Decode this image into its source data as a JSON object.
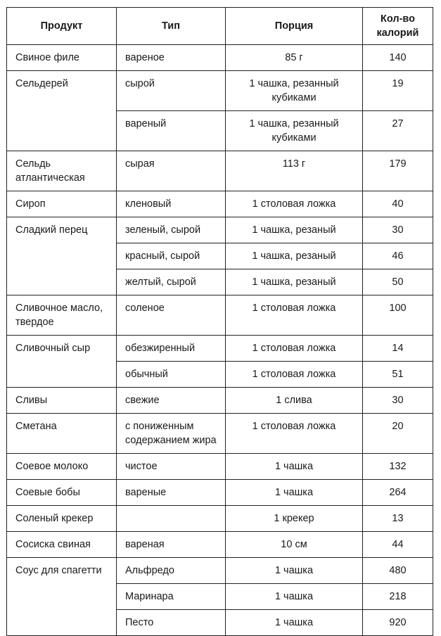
{
  "headers": {
    "product": "Продукт",
    "type": "Тип",
    "portion": "Порция",
    "calories": "Кол-во калорий"
  },
  "rows": [
    {
      "product": "Свиное филе",
      "variants": [
        {
          "type": "вареное",
          "portion": "85 г",
          "calories": "140"
        }
      ]
    },
    {
      "product": "Сельдерей",
      "variants": [
        {
          "type": "сырой",
          "portion": "1 чашка, резанный кубиками",
          "calories": "19"
        },
        {
          "type": "вареный",
          "portion": "1 чашка, резанный кубиками",
          "calories": "27"
        }
      ]
    },
    {
      "product": "Сельдь атлантическая",
      "variants": [
        {
          "type": "сырая",
          "portion": "113 г",
          "calories": "179"
        }
      ]
    },
    {
      "product": "Сироп",
      "variants": [
        {
          "type": "кленовый",
          "portion": "1 столовая ложка",
          "calories": "40"
        }
      ]
    },
    {
      "product": "Сладкий перец",
      "variants": [
        {
          "type": "зеленый, сырой",
          "portion": "1 чашка, резаный",
          "calories": "30"
        },
        {
          "type": "красный, сырой",
          "portion": "1 чашка, резаный",
          "calories": "46"
        },
        {
          "type": "желтый, сырой",
          "portion": "1 чашка, резаный",
          "calories": "50"
        }
      ]
    },
    {
      "product": "Сливочное масло, твердое",
      "variants": [
        {
          "type": "соленое",
          "portion": "1 столовая ложка",
          "calories": "100"
        }
      ]
    },
    {
      "product": "Сливочный сыр",
      "variants": [
        {
          "type": "обезжиренный",
          "portion": "1 столовая ложка",
          "calories": "14"
        },
        {
          "type": "обычный",
          "portion": "1 столовая ложка",
          "calories": "51"
        }
      ]
    },
    {
      "product": "Сливы",
      "variants": [
        {
          "type": "свежие",
          "portion": "1 слива",
          "calories": "30"
        }
      ]
    },
    {
      "product": "Сметана",
      "variants": [
        {
          "type": "с пониженным содержанием жира",
          "portion": "1 столовая ложка",
          "calories": "20"
        }
      ]
    },
    {
      "product": "Соевое молоко",
      "variants": [
        {
          "type": "чистое",
          "portion": "1 чашка",
          "calories": "132"
        }
      ]
    },
    {
      "product": "Соевые бобы",
      "variants": [
        {
          "type": "вареные",
          "portion": "1 чашка",
          "calories": "264"
        }
      ]
    },
    {
      "product": "Соленый крекер",
      "variants": [
        {
          "type": "",
          "portion": "1 крекер",
          "calories": "13"
        }
      ]
    },
    {
      "product": "Сосиска свиная",
      "variants": [
        {
          "type": "вареная",
          "portion": "10 см",
          "calories": "44"
        }
      ]
    },
    {
      "product": "Соус для спагетти",
      "variants": [
        {
          "type": "Альфредо",
          "portion": "1 чашка",
          "calories": "480"
        },
        {
          "type": "Маринара",
          "portion": "1 чашка",
          "calories": "218"
        },
        {
          "type": "Песто",
          "portion": "1 чашка",
          "calories": "920"
        }
      ]
    }
  ]
}
